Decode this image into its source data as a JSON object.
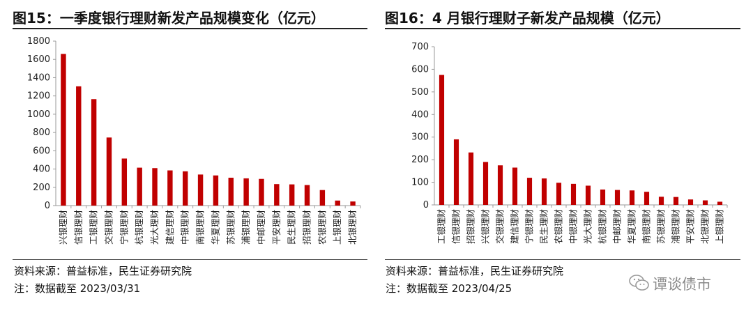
{
  "panels": [
    {
      "title": "图15：一季度银行理财新发产品规模变化（亿元）",
      "source": "资料来源：普益标准，民生证券研究院",
      "note": "注：数据截至 2023/03/31"
    },
    {
      "title": "图16：4 月银行理财子新发产品规模（亿元）",
      "source": "资料来源：普益标准，民生证券研究院",
      "note": "注：数据截至 2023/04/25"
    }
  ],
  "watermark": "谭谈债市",
  "colors": {
    "bar": "#c00000",
    "axis": "#9a9a9a",
    "text": "#222222"
  },
  "chart_data": [
    {
      "type": "bar",
      "title": "图15：一季度银行理财新发产品规模变化（亿元）",
      "categories": [
        "兴银理财",
        "信银理财",
        "工银理财",
        "交银理财",
        "宁银理财",
        "杭银理财",
        "光大理财",
        "建信理财",
        "中银理财",
        "南银理财",
        "华夏理财",
        "苏银理财",
        "浦银理财",
        "中邮理财",
        "平安理财",
        "民生理财",
        "招银理财",
        "农银理财",
        "上银理财",
        "北银理财"
      ],
      "values": [
        1660,
        1305,
        1165,
        745,
        515,
        415,
        410,
        385,
        375,
        340,
        330,
        305,
        298,
        292,
        235,
        232,
        225,
        170,
        55,
        45
      ],
      "ylim": [
        0,
        1800
      ],
      "yticks": [
        0,
        200,
        400,
        600,
        800,
        1000,
        1200,
        1400,
        1600,
        1800
      ],
      "grid": false
    },
    {
      "type": "bar",
      "title": "图16：4 月银行理财子新发产品规模（亿元）",
      "categories": [
        "工银理财",
        "信银理财",
        "招银理财",
        "兴银理财",
        "交银理财",
        "建信理财",
        "宁银理财",
        "民生理财",
        "农银理财",
        "中银理财",
        "光大理财",
        "杭银理财",
        "中邮理财",
        "华夏理财",
        "南银理财",
        "苏银理财",
        "浦银理财",
        "平安理财",
        "北银理财",
        "上银理财"
      ],
      "values": [
        575,
        290,
        232,
        190,
        175,
        165,
        120,
        117,
        98,
        93,
        85,
        68,
        66,
        64,
        58,
        36,
        35,
        24,
        20,
        14
      ],
      "ylim": [
        0,
        700
      ],
      "yticks": [
        0,
        100,
        200,
        300,
        400,
        500,
        600,
        700
      ],
      "grid": false
    }
  ]
}
